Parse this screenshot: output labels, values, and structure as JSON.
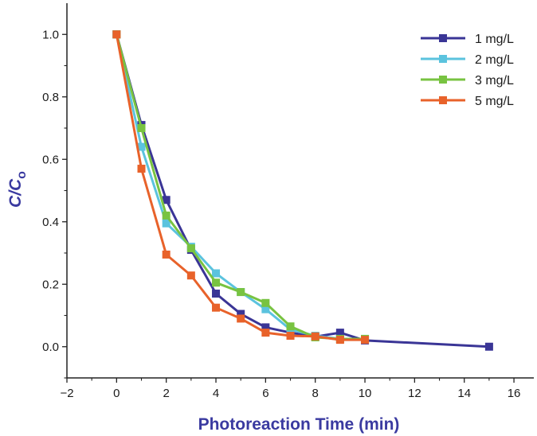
{
  "chart_data": {
    "type": "line",
    "title": "",
    "xlabel": "Photoreaction Time (min)",
    "ylabel_main": "C/C",
    "ylabel_sub": "o",
    "xlim": [
      -2,
      16.8
    ],
    "ylim": [
      -0.1,
      1.1
    ],
    "x_ticks": [
      -2,
      0,
      2,
      4,
      6,
      8,
      10,
      12,
      14,
      16
    ],
    "x_tick_labels": [
      "−2",
      "0",
      "2",
      "4",
      "6",
      "8",
      "10",
      "12",
      "14",
      "16"
    ],
    "y_ticks": [
      0.0,
      0.2,
      0.4,
      0.6,
      0.8,
      1.0
    ],
    "y_tick_labels": [
      "0.0",
      "0.2",
      "0.4",
      "0.6",
      "0.8",
      "1.0"
    ],
    "grid": false,
    "legend_position": "top-right",
    "series": [
      {
        "name": "1 mg/L",
        "color": "#3a3596",
        "points": [
          [
            0,
            1.0
          ],
          [
            1,
            0.71
          ],
          [
            2,
            0.47
          ],
          [
            3,
            0.31
          ],
          [
            4,
            0.17
          ],
          [
            5,
            0.105
          ],
          [
            6,
            0.062
          ],
          [
            7,
            0.045
          ],
          [
            8,
            0.032
          ],
          [
            9,
            0.045
          ],
          [
            10,
            0.02
          ],
          [
            15,
            0.0
          ]
        ]
      },
      {
        "name": "2 mg/L",
        "color": "#5bc3de",
        "points": [
          [
            0,
            1.0
          ],
          [
            1,
            0.64
          ],
          [
            2,
            0.395
          ],
          [
            3,
            0.32
          ],
          [
            4,
            0.235
          ],
          [
            5,
            0.175
          ],
          [
            6,
            0.12
          ],
          [
            7,
            0.055
          ],
          [
            8,
            0.035
          ],
          [
            9,
            0.025
          ],
          [
            10,
            0.025
          ]
        ]
      },
      {
        "name": "3 mg/L",
        "color": "#78c341",
        "points": [
          [
            0,
            1.0
          ],
          [
            1,
            0.7
          ],
          [
            2,
            0.42
          ],
          [
            3,
            0.315
          ],
          [
            4,
            0.205
          ],
          [
            5,
            0.175
          ],
          [
            6,
            0.14
          ],
          [
            7,
            0.065
          ],
          [
            8,
            0.03
          ],
          [
            9,
            0.025
          ],
          [
            10,
            0.025
          ]
        ]
      },
      {
        "name": "5 mg/L",
        "color": "#e8622a",
        "points": [
          [
            0,
            1.0
          ],
          [
            1,
            0.57
          ],
          [
            2,
            0.295
          ],
          [
            3,
            0.228
          ],
          [
            4,
            0.125
          ],
          [
            5,
            0.09
          ],
          [
            6,
            0.045
          ],
          [
            7,
            0.035
          ],
          [
            8,
            0.033
          ],
          [
            9,
            0.022
          ],
          [
            10,
            0.022
          ]
        ]
      }
    ]
  }
}
